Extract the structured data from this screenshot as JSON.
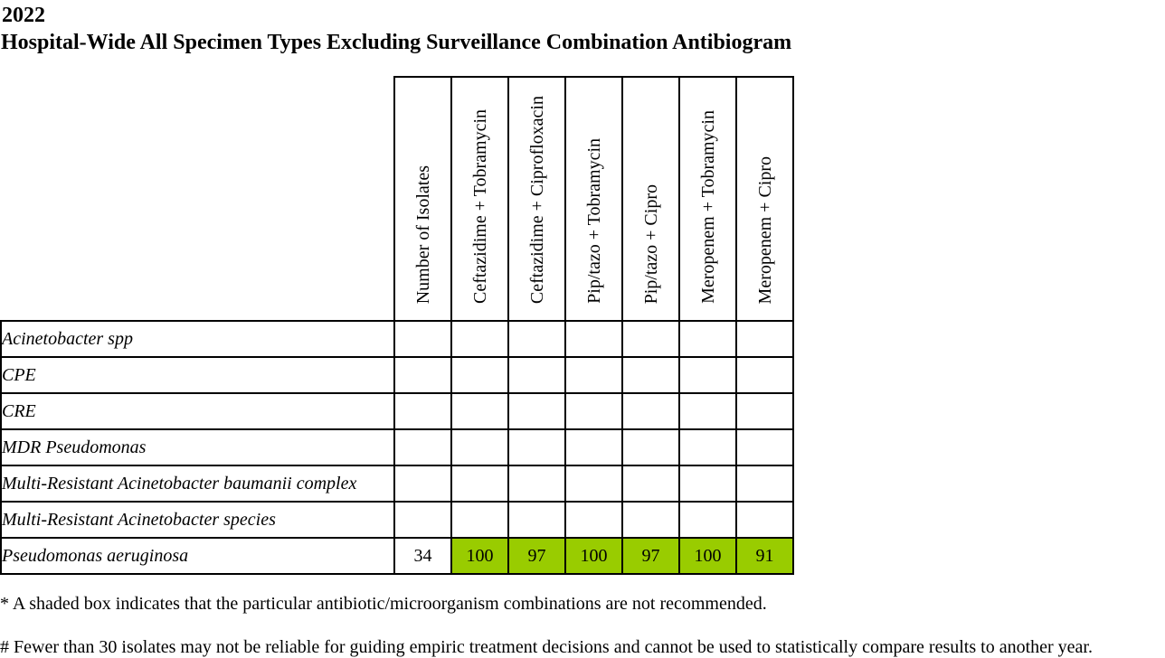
{
  "report": {
    "year": "2022",
    "title": "Hospital-Wide All Specimen Types Excluding Surveillance Combination Antibiogram"
  },
  "table": {
    "columns": [
      "Number of Isolates",
      "Ceftazidime + Tobramycin",
      "Ceftazidime + Ciprofloxacin",
      "Pip/tazo + Tobramycin",
      "Pip/tazo + Cipro",
      "Meropenem + Tobramycin",
      "Meropenem + Cipro"
    ],
    "rows": [
      {
        "organism": "Acinetobacter spp",
        "values": [
          "",
          "",
          "",
          "",
          "",
          "",
          ""
        ]
      },
      {
        "organism": "CPE",
        "values": [
          "",
          "",
          "",
          "",
          "",
          "",
          ""
        ]
      },
      {
        "organism": "CRE",
        "values": [
          "",
          "",
          "",
          "",
          "",
          "",
          ""
        ]
      },
      {
        "organism": "MDR Pseudomonas",
        "values": [
          "",
          "",
          "",
          "",
          "",
          "",
          ""
        ]
      },
      {
        "organism": "Multi-Resistant Acinetobacter baumanii complex",
        "values": [
          "",
          "",
          "",
          "",
          "",
          "",
          ""
        ]
      },
      {
        "organism": "Multi-Resistant Acinetobacter species",
        "values": [
          "",
          "",
          "",
          "",
          "",
          "",
          ""
        ]
      },
      {
        "organism": "Pseudomonas aeruginosa",
        "values": [
          "34",
          "100",
          "97",
          "100",
          "97",
          "100",
          "91"
        ]
      }
    ],
    "shade_color": "#99cc00"
  },
  "notes": {
    "shaded": "* A shaded box indicates that the particular antibiotic/microorganism combinations are not recommended.",
    "isolates": "# Fewer than 30 isolates may not be reliable for guiding empiric treatment decisions and cannot be used to statistically compare results to another year."
  }
}
